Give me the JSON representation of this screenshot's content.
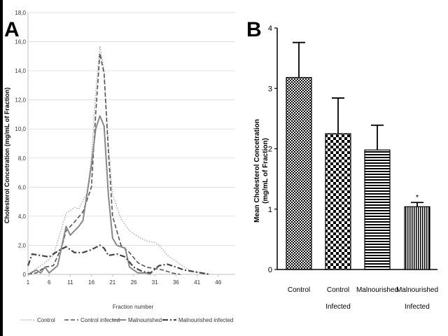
{
  "panels": {
    "a_letter": "A",
    "b_letter": "B"
  },
  "chart_data": [
    {
      "type": "line",
      "panel": "A",
      "ylabel": "Cholesterol Concetration (mg/mL of Fraction)",
      "xlabel": "Fraction number",
      "ylim": [
        0,
        18
      ],
      "xlim": [
        1,
        50
      ],
      "xticks": [
        1,
        6,
        11,
        16,
        21,
        26,
        31,
        36,
        41,
        46
      ],
      "yticks": [
        "0",
        "2,0",
        "4,0",
        "6,0",
        "8,0",
        "10,0",
        "12,0",
        "14,0",
        "16,0",
        "18,0"
      ],
      "legend_position": "bottom",
      "series": [
        {
          "name": "Control",
          "style": "dotted",
          "color": "#aaaaaa",
          "points": [
            [
              1,
              0
            ],
            [
              3,
              0.4
            ],
            [
              5,
              0.8
            ],
            [
              7,
              1.3
            ],
            [
              9,
              3.2
            ],
            [
              10,
              4.2
            ],
            [
              12,
              4.6
            ],
            [
              13,
              4.5
            ],
            [
              15,
              5.6
            ],
            [
              16,
              8.0
            ],
            [
              17,
              12.5
            ],
            [
              18,
              15.7
            ],
            [
              19,
              14.0
            ],
            [
              20,
              9.0
            ],
            [
              21,
              5.5
            ],
            [
              23,
              3.8
            ],
            [
              25,
              3.0
            ],
            [
              27,
              2.6
            ],
            [
              29,
              2.3
            ],
            [
              31,
              2.2
            ],
            [
              32,
              2.0
            ],
            [
              34,
              1.3
            ],
            [
              36,
              0.9
            ],
            [
              38,
              0.5
            ],
            [
              40,
              0.2
            ],
            [
              42,
              0.1
            ],
            [
              44,
              0
            ]
          ]
        },
        {
          "name": "Control infected",
          "style": "dashed",
          "color": "#555555",
          "points": [
            [
              1,
              0
            ],
            [
              3,
              0.1
            ],
            [
              5,
              0.5
            ],
            [
              7,
              0.6
            ],
            [
              9,
              1.9
            ],
            [
              10,
              3.0
            ],
            [
              12,
              3.6
            ],
            [
              14,
              4.3
            ],
            [
              16,
              6.0
            ],
            [
              17,
              11.0
            ],
            [
              18,
              15.2
            ],
            [
              19,
              13.8
            ],
            [
              20,
              8.5
            ],
            [
              21,
              4.0
            ],
            [
              23,
              2.0
            ],
            [
              25,
              1.5
            ],
            [
              27,
              0.8
            ],
            [
              29,
              0.5
            ],
            [
              31,
              0.4
            ],
            [
              33,
              0.3
            ],
            [
              35,
              0.1
            ],
            [
              37,
              0
            ]
          ]
        },
        {
          "name": "Malnourished",
          "style": "solid",
          "color": "#888888",
          "points": [
            [
              1,
              0
            ],
            [
              3,
              0.3
            ],
            [
              4,
              0.1
            ],
            [
              5,
              0.5
            ],
            [
              6,
              0.1
            ],
            [
              8,
              0.6
            ],
            [
              10,
              3.3
            ],
            [
              11,
              2.7
            ],
            [
              13,
              3.3
            ],
            [
              14,
              3.7
            ],
            [
              16,
              7.5
            ],
            [
              17,
              10.0
            ],
            [
              18,
              10.9
            ],
            [
              19,
              10.2
            ],
            [
              20,
              5.5
            ],
            [
              21,
              2.5
            ],
            [
              22,
              2.0
            ],
            [
              24,
              1.8
            ],
            [
              25,
              0.5
            ],
            [
              26,
              0.3
            ],
            [
              27,
              0.1
            ],
            [
              29,
              0.1
            ],
            [
              30,
              0
            ]
          ]
        },
        {
          "name": "Malnourished infected",
          "style": "dashdot",
          "color": "#444444",
          "points": [
            [
              1,
              0.6
            ],
            [
              2,
              1.4
            ],
            [
              4,
              1.3
            ],
            [
              6,
              1.2
            ],
            [
              8,
              1.6
            ],
            [
              10,
              1.9
            ],
            [
              12,
              1.5
            ],
            [
              14,
              1.5
            ],
            [
              16,
              1.7
            ],
            [
              18,
              2.0
            ],
            [
              19,
              1.8
            ],
            [
              20,
              1.3
            ],
            [
              22,
              1.4
            ],
            [
              24,
              1.2
            ],
            [
              26,
              0.5
            ],
            [
              28,
              0.2
            ],
            [
              30,
              0.1
            ],
            [
              32,
              0.6
            ],
            [
              34,
              0.7
            ],
            [
              36,
              0.5
            ],
            [
              38,
              0.3
            ],
            [
              40,
              0.2
            ],
            [
              42,
              0.1
            ],
            [
              44,
              0
            ]
          ]
        }
      ]
    },
    {
      "type": "bar",
      "panel": "B",
      "ylabel_line1": "Mean Cholesterol Concetration",
      "ylabel_line2": "(mg/mL of Fraction)",
      "ylim": [
        0,
        4
      ],
      "yticks": [
        "0",
        "1",
        "2",
        "3",
        "4"
      ],
      "categories": [
        {
          "line1": "Control",
          "line2": ""
        },
        {
          "line1": "Control",
          "line2": "Infected"
        },
        {
          "line1": "Malnourished",
          "line2": ""
        },
        {
          "line1": "Malnourished",
          "line2": "Infected"
        }
      ],
      "values": [
        3.18,
        2.25,
        1.98,
        1.04
      ],
      "errors": [
        0.58,
        0.59,
        0.41,
        0.07
      ],
      "patterns": [
        "dots",
        "checker",
        "horizontal",
        "vertical"
      ],
      "annotations": [
        "",
        "",
        "",
        "*"
      ]
    }
  ]
}
